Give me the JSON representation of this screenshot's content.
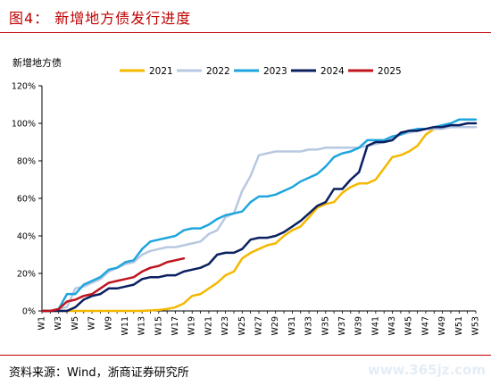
{
  "header": {
    "title": "图4： 新增地方债发行进度"
  },
  "footer": {
    "source": "资料来源：Wind，浙商证券研究所",
    "watermark": "www.365jz.com"
  },
  "chart_data": {
    "type": "line",
    "title": "图4： 新增地方债发行进度",
    "ylabel": "新增地方债",
    "xlabel": "",
    "ylim": [
      0,
      120
    ],
    "yticks": [
      0,
      20,
      40,
      60,
      80,
      100,
      120
    ],
    "ytick_labels": [
      "0%",
      "20%",
      "40%",
      "60%",
      "80%",
      "100%",
      "120%"
    ],
    "x_tick_labels": [
      "W1",
      "W3",
      "W5",
      "W7",
      "W9",
      "W11",
      "W13",
      "W15",
      "W17",
      "W19",
      "W21",
      "W23",
      "W25",
      "W27",
      "W29",
      "W31",
      "W33",
      "W35",
      "W37",
      "W39",
      "W41",
      "W43",
      "W45",
      "W47",
      "W49",
      "W51",
      "W53"
    ],
    "grid": false,
    "legend_position": "top",
    "series": [
      {
        "name": "2021",
        "color": "#f5b800",
        "values": [
          0,
          0,
          0,
          0,
          0,
          0,
          0,
          0,
          0,
          0,
          0,
          0,
          0,
          0.3,
          0.5,
          1,
          2,
          4,
          8,
          9,
          12,
          15,
          19,
          21,
          28,
          31,
          33,
          35,
          36,
          40,
          43,
          45,
          50,
          55,
          57,
          58,
          63,
          66,
          68,
          68,
          70,
          76,
          82,
          83,
          85,
          88,
          94,
          97,
          98,
          98,
          98,
          98,
          98
        ]
      },
      {
        "name": "2022",
        "color": "#b7c8e0",
        "values": [
          0,
          0,
          1,
          2,
          12,
          13,
          15,
          17,
          21,
          23,
          25,
          26,
          30,
          32,
          33,
          34,
          34,
          35,
          36,
          37,
          41,
          43,
          50,
          52,
          64,
          72,
          83,
          84,
          85,
          85,
          85,
          85,
          86,
          86,
          87,
          87,
          87,
          87,
          87,
          88,
          89,
          90,
          92,
          94,
          95,
          96,
          97,
          97,
          97,
          98,
          98,
          98,
          98
        ]
      },
      {
        "name": "2023",
        "color": "#1fa5dd",
        "values": [
          0,
          0,
          1,
          9,
          9,
          14,
          16,
          18,
          22,
          23,
          26,
          27,
          33,
          37,
          38,
          39,
          40,
          43,
          44,
          44,
          46,
          49,
          51,
          52,
          53,
          58,
          61,
          61,
          62,
          64,
          66,
          69,
          71,
          73,
          77,
          82,
          84,
          85,
          87,
          91,
          91,
          91,
          93,
          94,
          96,
          97,
          97,
          98,
          99,
          100,
          102,
          102,
          102
        ]
      },
      {
        "name": "2024",
        "color": "#0a2060",
        "values": [
          0,
          0,
          0,
          0,
          2,
          6,
          8,
          9,
          12,
          12,
          13,
          14,
          17,
          18,
          18,
          19,
          19,
          21,
          22,
          23,
          25,
          30,
          31,
          31,
          33,
          38,
          39,
          39,
          40,
          42,
          45,
          48,
          52,
          56,
          58,
          65,
          65,
          70,
          74,
          88,
          90,
          90,
          91,
          95,
          96,
          96,
          97,
          98,
          98,
          99,
          99,
          100,
          100
        ]
      },
      {
        "name": "2025",
        "color": "#c0141e",
        "values": [
          0,
          0,
          1,
          5,
          6,
          8,
          9,
          12,
          15,
          16,
          17,
          18,
          21,
          23,
          24,
          26,
          27,
          28
        ]
      }
    ]
  }
}
